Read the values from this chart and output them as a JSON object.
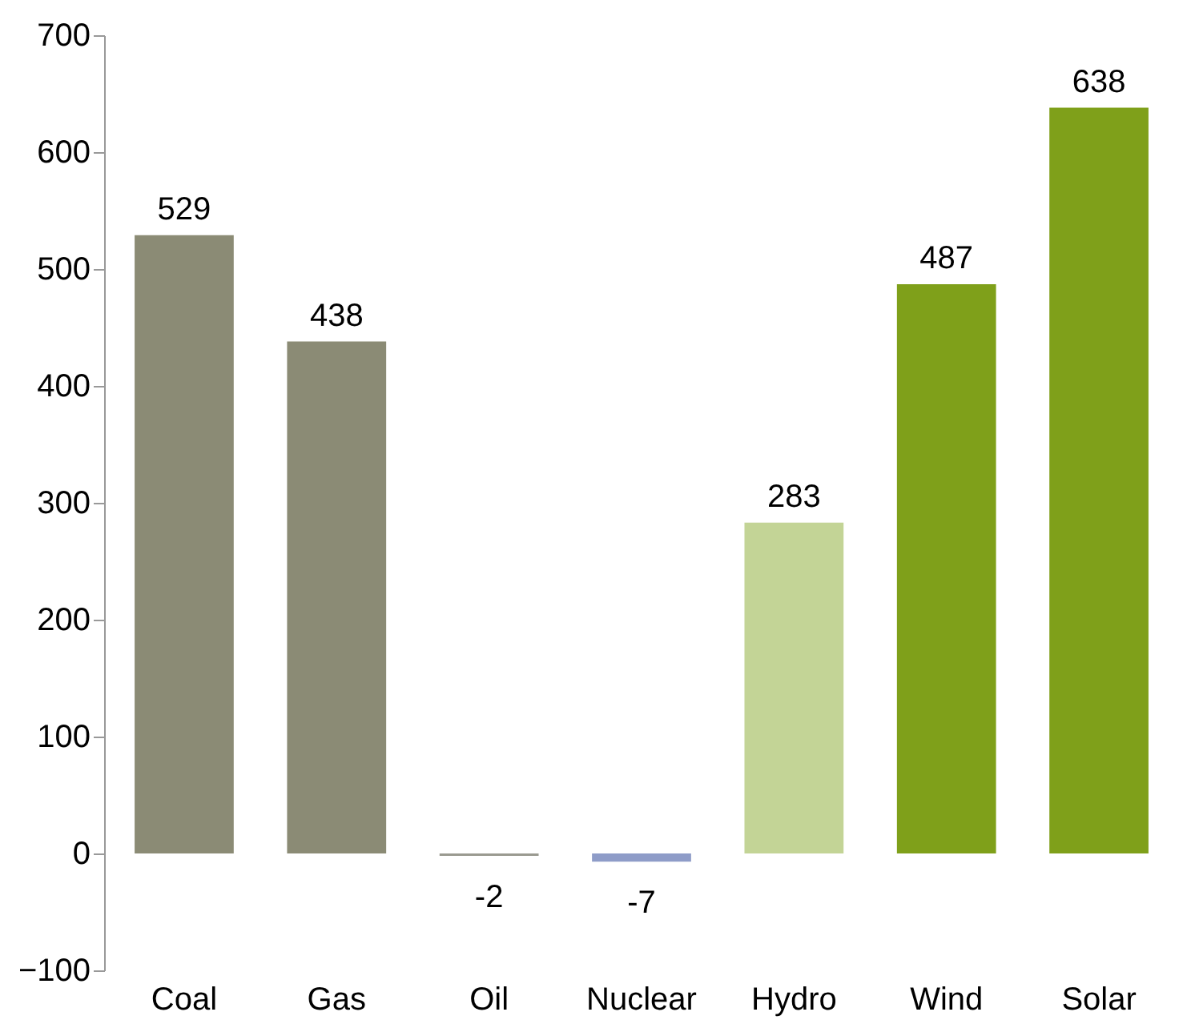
{
  "chart_data": {
    "type": "bar",
    "categories": [
      "Coal",
      "Gas",
      "Oil",
      "Nuclear",
      "Hydro",
      "Wind",
      "Solar"
    ],
    "values": [
      529,
      438,
      -2,
      -7,
      283,
      487,
      638
    ],
    "colors": [
      "#8b8b75",
      "#8b8b75",
      "#9a9a90",
      "#8e9cc8",
      "#c3d496",
      "#7fa01a",
      "#7fa01a"
    ],
    "ylim": [
      -100,
      700
    ],
    "yticks": [
      -100,
      0,
      100,
      200,
      300,
      400,
      500,
      600,
      700
    ],
    "data_labels": true,
    "grid": false
  }
}
